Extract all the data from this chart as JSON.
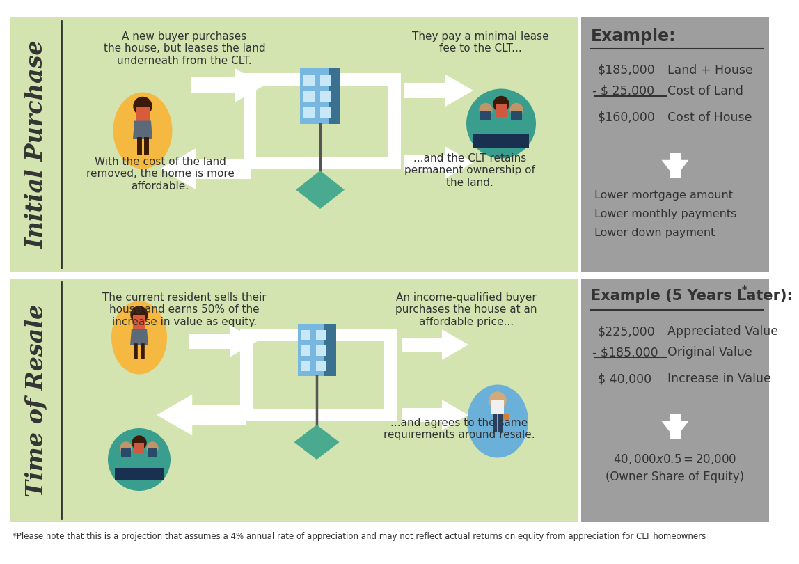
{
  "bg_color": "#ffffff",
  "green_bg": "#d4e4b0",
  "gray_bg": "#9e9e9e",
  "dark_text": "#333333",
  "yellow_circle": "#f5b942",
  "teal_circle": "#3a9e8e",
  "blue_circle": "#6ab0d8",
  "house_body": "#78b8e0",
  "house_window": "#c8e8f8",
  "house_dark": "#3a7090",
  "land_color": "#4aaa90",
  "pole_color": "#555555",
  "section1_label": "Initial Purchase",
  "section2_label": "Time of Resale",
  "s1_top_left": "A new buyer purchases\nthe house, but leases the land\nunderneath from the CLT.",
  "s1_bot_left": "With the cost of the land\nremoved, the home is more\naffordable.",
  "s1_top_right": "They pay a minimal lease\nfee to the CLT...",
  "s1_bot_right": "...and the CLT retains\npermanent ownership of\nthe land.",
  "s2_top_left": "The current resident sells their\nhouse and earns 50% of the\nincrease in value as equity.",
  "s2_top_right": "An income-qualified buyer\npurchases the house at an\naffordable price...",
  "s2_bot_right": "...and agrees to the same\nrequirements around resale.",
  "ex1_title": "Example:",
  "ex1_v1": "$185,000",
  "ex1_d1": "Land + House",
  "ex1_v2": "- $ 25,000",
  "ex1_d2": "Cost of Land",
  "ex1_v3": "$160,000",
  "ex1_d3": "Cost of House",
  "ex1_bullets": [
    "Lower mortgage amount",
    "Lower monthly payments",
    "Lower down payment"
  ],
  "ex2_title": "Example (5 Years Later):",
  "ex2_star": "*",
  "ex2_v1": "$225,000",
  "ex2_d1": "Appreciated Value",
  "ex2_v2": "- $185,000",
  "ex2_d2": "Original Value",
  "ex2_v3": "$ 40,000",
  "ex2_d3": "Increase in Value",
  "ex2_result1": "$40,000 x 0.5 = $20,000",
  "ex2_result2": "(Owner Share of Equity)",
  "footnote": "*Please note that this is a projection that assumes a 4% annual rate of appreciation and may not reflect actual returns on equity from appreciation for CLT homeowners"
}
